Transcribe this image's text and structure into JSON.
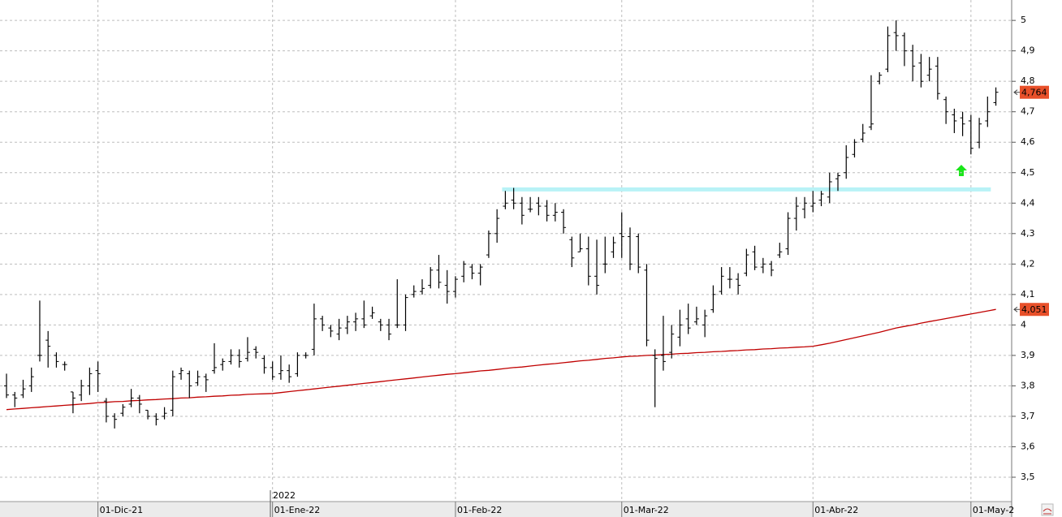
{
  "chart_data": {
    "type": "ohlc",
    "categories": [
      null,
      null,
      null,
      null,
      null,
      null,
      null,
      null,
      null,
      null,
      null,
      "01-Dic-21",
      null,
      null,
      null,
      null,
      null,
      null,
      null,
      null,
      null,
      null,
      null,
      null,
      null,
      null,
      null,
      null,
      null,
      null,
      null,
      null,
      "01-Ene-22",
      null,
      null,
      null,
      null,
      null,
      null,
      null,
      null,
      null,
      null,
      null,
      null,
      null,
      null,
      null,
      null,
      null,
      null,
      null,
      null,
      null,
      "01-Feb-22",
      null,
      null,
      null,
      null,
      null,
      null,
      null,
      null,
      null,
      null,
      null,
      null,
      null,
      null,
      null,
      null,
      null,
      null,
      null,
      "01-Mar-22",
      null,
      null,
      null,
      null,
      null,
      null,
      null,
      null,
      null,
      null,
      null,
      null,
      null,
      null,
      null,
      null,
      null,
      null,
      null,
      null,
      null,
      null,
      "01-Abr-22",
      null,
      null,
      null,
      null,
      null,
      null,
      null,
      null,
      null,
      null,
      null,
      null,
      null,
      null,
      null,
      null,
      null,
      null,
      "01-May-2",
      null,
      null,
      null
    ],
    "year_label": "2022",
    "color": "#000000",
    "open": [
      3.8,
      3.77,
      3.77,
      3.8,
      3.9,
      3.95,
      3.9,
      3.87,
      3.78,
      3.77,
      3.8,
      3.85,
      3.75,
      3.7,
      3.71,
      3.74,
      3.76,
      3.72,
      3.7,
      3.7,
      3.72,
      3.84,
      3.84,
      3.81,
      3.83,
      3.85,
      3.87,
      3.88,
      3.9,
      3.89,
      3.92,
      3.89,
      3.86,
      3.84,
      3.85,
      3.84,
      3.9,
      3.92,
      4.02,
      3.99,
      3.97,
      3.99,
      4.01,
      4.02,
      4.03,
      4.01,
      4.0,
      4.0,
      4.0,
      4.1,
      4.11,
      4.13,
      4.18,
      4.13,
      4.11,
      4.16,
      4.19,
      4.17,
      4.23,
      4.3,
      4.39,
      4.41,
      4.4,
      4.38,
      4.4,
      4.39,
      4.36,
      4.37,
      4.28,
      4.24,
      4.25,
      4.16,
      4.2,
      4.24,
      4.3,
      4.29,
      4.29,
      4.18,
      3.9,
      3.9,
      3.91,
      3.96,
      4.02,
      4.01,
      4.0,
      4.05,
      4.11,
      4.15,
      4.15,
      4.17,
      4.24,
      4.19,
      4.2,
      4.23,
      4.25,
      4.35,
      4.38,
      4.39,
      4.41,
      4.42,
      4.48,
      4.5,
      4.56,
      4.61,
      4.65,
      4.8,
      4.84,
      4.96,
      4.95,
      4.9,
      4.86,
      4.82,
      4.85,
      4.74,
      4.69,
      4.68,
      4.67,
      4.6,
      4.67,
      4.73
    ],
    "high": [
      3.84,
      3.78,
      3.82,
      3.86,
      4.08,
      3.98,
      3.91,
      3.88,
      3.78,
      3.82,
      3.86,
      3.88,
      3.76,
      3.71,
      3.74,
      3.79,
      3.77,
      3.72,
      3.71,
      3.73,
      3.85,
      3.86,
      3.85,
      3.85,
      3.84,
      3.94,
      3.89,
      3.92,
      3.92,
      3.96,
      3.93,
      3.9,
      3.88,
      3.9,
      3.87,
      3.91,
      3.91,
      4.07,
      4.03,
      4.0,
      4.02,
      4.03,
      4.04,
      4.08,
      4.06,
      4.02,
      4.02,
      4.15,
      4.1,
      4.13,
      4.15,
      4.19,
      4.23,
      4.18,
      4.16,
      4.21,
      4.2,
      4.2,
      4.31,
      4.38,
      4.44,
      4.45,
      4.42,
      4.42,
      4.42,
      4.41,
      4.4,
      4.38,
      4.29,
      4.3,
      4.29,
      4.28,
      4.29,
      4.29,
      4.37,
      4.32,
      4.3,
      4.2,
      3.92,
      4.03,
      4.0,
      4.05,
      4.07,
      4.06,
      4.05,
      4.13,
      4.19,
      4.19,
      4.17,
      4.25,
      4.26,
      4.22,
      4.21,
      4.27,
      4.37,
      4.42,
      4.42,
      4.44,
      4.44,
      4.5,
      4.5,
      4.59,
      4.61,
      4.66,
      4.82,
      4.83,
      4.98,
      5.0,
      4.96,
      4.92,
      4.89,
      4.88,
      4.88,
      4.75,
      4.71,
      4.7,
      4.69,
      4.68,
      4.75,
      4.78
    ],
    "low": [
      3.76,
      3.73,
      3.76,
      3.78,
      3.88,
      3.86,
      3.86,
      3.85,
      3.71,
      3.75,
      3.77,
      3.78,
      3.68,
      3.66,
      3.7,
      3.73,
      3.71,
      3.69,
      3.67,
      3.69,
      3.7,
      3.82,
      3.76,
      3.8,
      3.78,
      3.84,
      3.85,
      3.87,
      3.86,
      3.88,
      3.89,
      3.84,
      3.82,
      3.82,
      3.81,
      3.83,
      3.89,
      3.9,
      3.98,
      3.96,
      3.95,
      3.97,
      3.98,
      3.99,
      4.02,
      3.98,
      3.95,
      3.99,
      3.98,
      4.09,
      4.1,
      4.12,
      4.12,
      4.07,
      4.09,
      4.14,
      4.15,
      4.13,
      4.22,
      4.27,
      4.38,
      4.38,
      4.33,
      4.37,
      4.36,
      4.34,
      4.34,
      4.3,
      4.19,
      4.24,
      4.13,
      4.1,
      4.17,
      4.22,
      4.22,
      4.18,
      4.17,
      3.93,
      3.73,
      3.85,
      3.89,
      3.93,
      3.97,
      4.0,
      3.96,
      4.04,
      4.1,
      4.12,
      4.1,
      4.16,
      4.18,
      4.17,
      4.16,
      4.22,
      4.23,
      4.31,
      4.35,
      4.37,
      4.39,
      4.4,
      4.44,
      4.48,
      4.55,
      4.6,
      4.64,
      4.79,
      4.83,
      4.9,
      4.85,
      4.8,
      4.78,
      4.8,
      4.74,
      4.66,
      4.63,
      4.62,
      4.56,
      4.58,
      4.65,
      4.72
    ],
    "close": [
      3.77,
      3.76,
      3.79,
      3.83,
      3.9,
      3.93,
      3.88,
      3.87,
      3.76,
      3.8,
      3.84,
      3.84,
      3.7,
      3.69,
      3.73,
      3.76,
      3.74,
      3.7,
      3.69,
      3.71,
      3.83,
      3.85,
      3.8,
      3.83,
      3.82,
      3.86,
      3.88,
      3.9,
      3.88,
      3.91,
      3.91,
      3.86,
      3.83,
      3.85,
      3.83,
      3.9,
      3.9,
      4.02,
      4.0,
      3.98,
      3.99,
      4.01,
      4.02,
      4.0,
      4.04,
      4.0,
      3.97,
      4.0,
      4.09,
      4.11,
      4.12,
      4.18,
      4.14,
      4.11,
      4.15,
      4.2,
      4.17,
      4.19,
      4.3,
      4.35,
      4.4,
      4.4,
      4.36,
      4.38,
      4.39,
      4.36,
      4.37,
      4.32,
      4.22,
      4.25,
      4.16,
      4.13,
      4.2,
      4.27,
      4.29,
      4.2,
      4.19,
      3.95,
      3.89,
      3.88,
      3.97,
      4.0,
      3.99,
      4.02,
      4.03,
      4.1,
      4.16,
      4.15,
      4.13,
      4.23,
      4.19,
      4.2,
      4.18,
      4.24,
      4.35,
      4.39,
      4.4,
      4.4,
      4.43,
      4.47,
      4.49,
      4.55,
      4.6,
      4.63,
      4.66,
      4.82,
      4.95,
      4.95,
      4.9,
      4.85,
      4.8,
      4.84,
      4.76,
      4.7,
      4.67,
      4.66,
      4.58,
      4.66,
      4.7,
      4.764
    ],
    "ma": {
      "color": "#c00000",
      "values": [
        3.722,
        3.724,
        3.726,
        3.728,
        3.73,
        3.732,
        3.734,
        3.736,
        3.738,
        3.74,
        3.742,
        3.745,
        3.746,
        3.748,
        3.749,
        3.751,
        3.752,
        3.754,
        3.755,
        3.757,
        3.758,
        3.76,
        3.761,
        3.763,
        3.764,
        3.766,
        3.767,
        3.769,
        3.77,
        3.772,
        3.773,
        3.774,
        3.775,
        3.778,
        3.781,
        3.784,
        3.787,
        3.79,
        3.793,
        3.796,
        3.799,
        3.802,
        3.805,
        3.808,
        3.811,
        3.814,
        3.817,
        3.82,
        3.823,
        3.826,
        3.829,
        3.832,
        3.835,
        3.838,
        3.84,
        3.843,
        3.846,
        3.849,
        3.851,
        3.854,
        3.857,
        3.86,
        3.862,
        3.865,
        3.868,
        3.871,
        3.873,
        3.876,
        3.879,
        3.882,
        3.884,
        3.887,
        3.89,
        3.892,
        3.895,
        3.897,
        3.898,
        3.9,
        3.901,
        3.903,
        3.904,
        3.906,
        3.907,
        3.909,
        3.91,
        3.912,
        3.913,
        3.915,
        3.916,
        3.918,
        3.919,
        3.921,
        3.922,
        3.924,
        3.925,
        3.927,
        3.928,
        3.93,
        3.935,
        3.94,
        3.946,
        3.952,
        3.958,
        3.964,
        3.97,
        3.976,
        3.983,
        3.99,
        3.995,
        4.0,
        4.006,
        4.011,
        4.016,
        4.021,
        4.026,
        4.031,
        4.036,
        4.041,
        4.046,
        4.051
      ]
    },
    "hline": {
      "value": 4.445,
      "color": "#b8f2f6"
    },
    "price_labels": [
      {
        "value": 4.764,
        "label": "4,764",
        "color": "#e8502a"
      },
      {
        "value": 4.051,
        "label": "4,051",
        "color": "#e8502a"
      }
    ],
    "ylim": [
      3.436,
      5.067
    ],
    "yticks": [
      {
        "value": 3.5,
        "label": "3,5"
      },
      {
        "value": 3.6,
        "label": "3,6"
      },
      {
        "value": 3.7,
        "label": "3,7"
      },
      {
        "value": 3.8,
        "label": "3,8"
      },
      {
        "value": 3.9,
        "label": "3,9"
      },
      4,
      {
        "value": 4.1,
        "label": "4,1"
      },
      {
        "value": 4.2,
        "label": "4,2"
      },
      {
        "value": 4.3,
        "label": "4,3"
      },
      {
        "value": 4.4,
        "label": "4,4"
      },
      {
        "value": 4.5,
        "label": "4,5"
      },
      {
        "value": 4.6,
        "label": "4,6"
      },
      {
        "value": 4.7,
        "label": "4,7"
      },
      {
        "value": 4.8,
        "label": "4,8"
      },
      {
        "value": 4.9,
        "label": "4,9"
      },
      5
    ],
    "grid": true
  }
}
